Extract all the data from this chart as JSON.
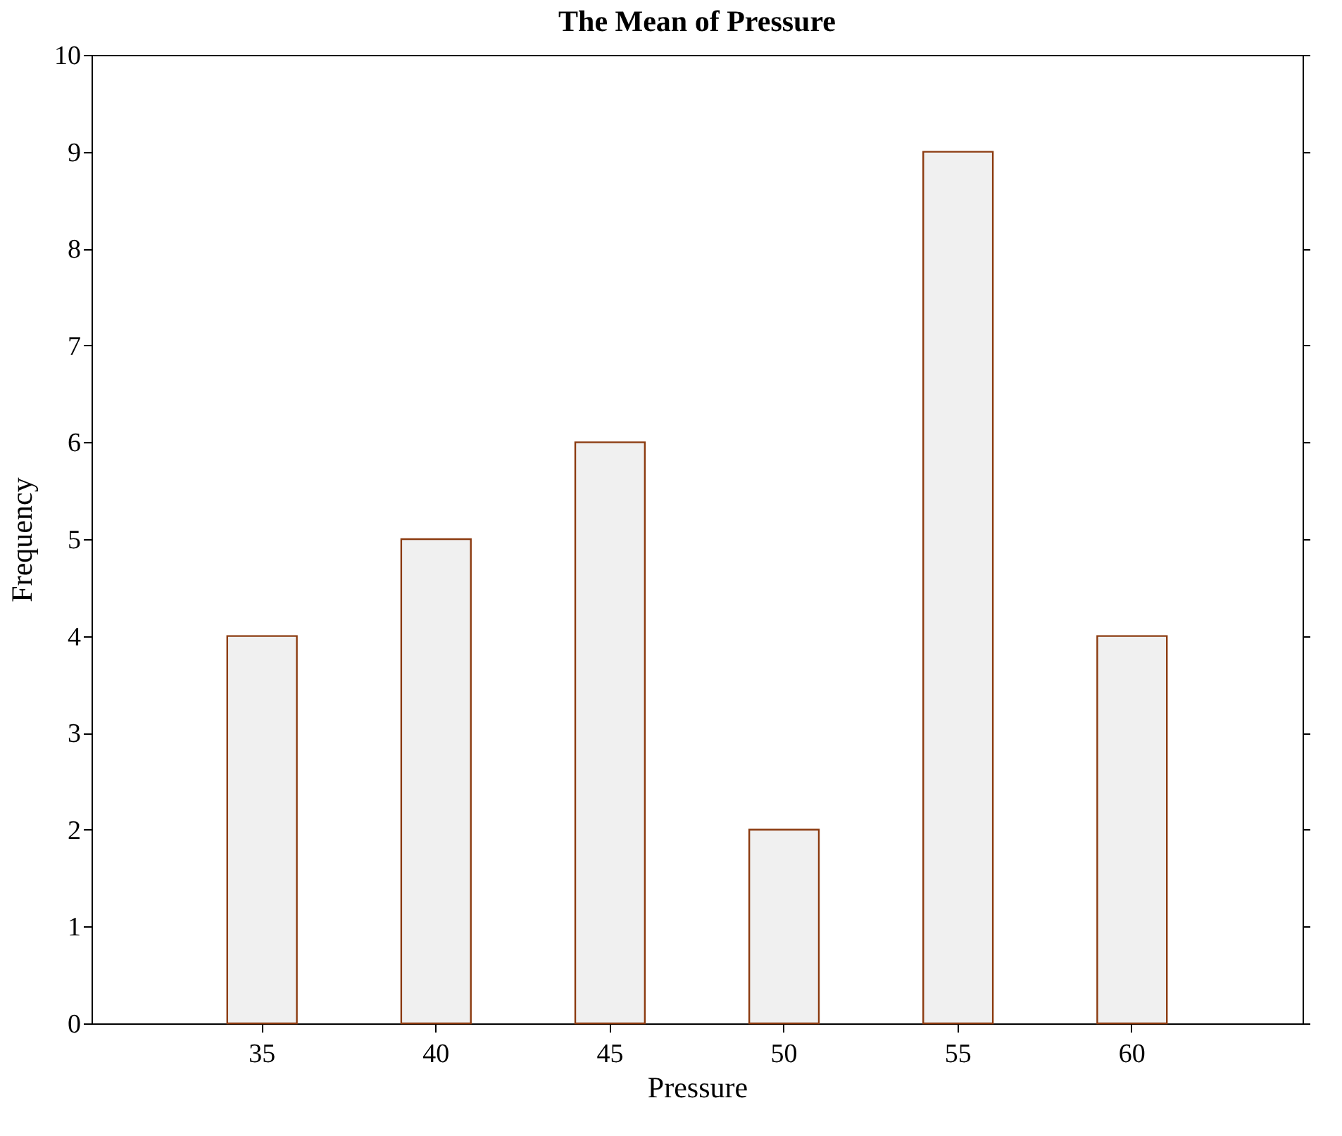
{
  "chart_data": {
    "type": "bar",
    "title": "The Mean of  Pressure",
    "xlabel": "Pressure",
    "ylabel": "Frequency",
    "categories": [
      "35",
      "40",
      "45",
      "50",
      "55",
      "60"
    ],
    "values": [
      4,
      5,
      6,
      2,
      9,
      4
    ],
    "color": "#f0f0f0",
    "ylim": [
      0,
      10
    ],
    "yticks": [
      0,
      1,
      2,
      3,
      4,
      5,
      6,
      7,
      8,
      9,
      10
    ],
    "grid": false
  }
}
